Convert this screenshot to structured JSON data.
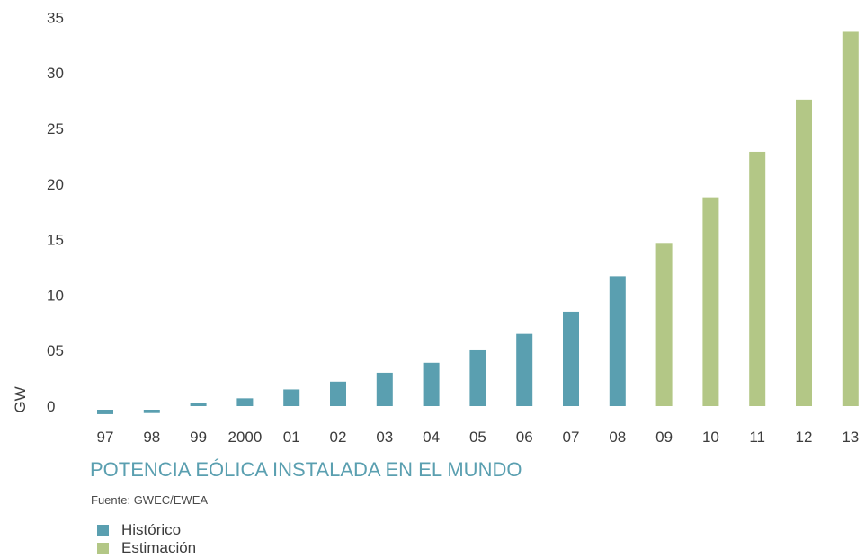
{
  "chart_data": {
    "type": "bar",
    "title": "POTENCIA EÓLICA INSTALADA EN EL MUNDO",
    "source": "Fuente: GWEC/EWEA",
    "ylabel": "GW",
    "xlabel": "",
    "ylim": [
      0,
      35
    ],
    "yticks": [
      {
        "value": 0,
        "label": "0"
      },
      {
        "value": 5,
        "label": "05"
      },
      {
        "value": 10,
        "label": "10"
      },
      {
        "value": 15,
        "label": "15"
      },
      {
        "value": 20,
        "label": "20"
      },
      {
        "value": 25,
        "label": "25"
      },
      {
        "value": 30,
        "label": "30"
      },
      {
        "value": 35,
        "label": "35"
      }
    ],
    "categories": [
      "97",
      "98",
      "99",
      "2000",
      "01",
      "02",
      "03",
      "04",
      "05",
      "06",
      "07",
      "08",
      "09",
      "10",
      "11",
      "12",
      "13"
    ],
    "series": [
      {
        "name": "Histórico",
        "color": "#5a9fb0",
        "values": [
          -0.4,
          -0.3,
          0.3,
          0.7,
          1.5,
          2.2,
          3.0,
          3.9,
          5.1,
          6.5,
          8.5,
          11.7,
          null,
          null,
          null,
          null,
          null
        ]
      },
      {
        "name": "Estimación",
        "color": "#b3c786",
        "values": [
          null,
          null,
          null,
          null,
          null,
          null,
          null,
          null,
          null,
          null,
          null,
          null,
          14.7,
          18.8,
          22.9,
          27.6,
          33.7
        ]
      }
    ],
    "grid": false,
    "legend_position": "bottom-left"
  }
}
